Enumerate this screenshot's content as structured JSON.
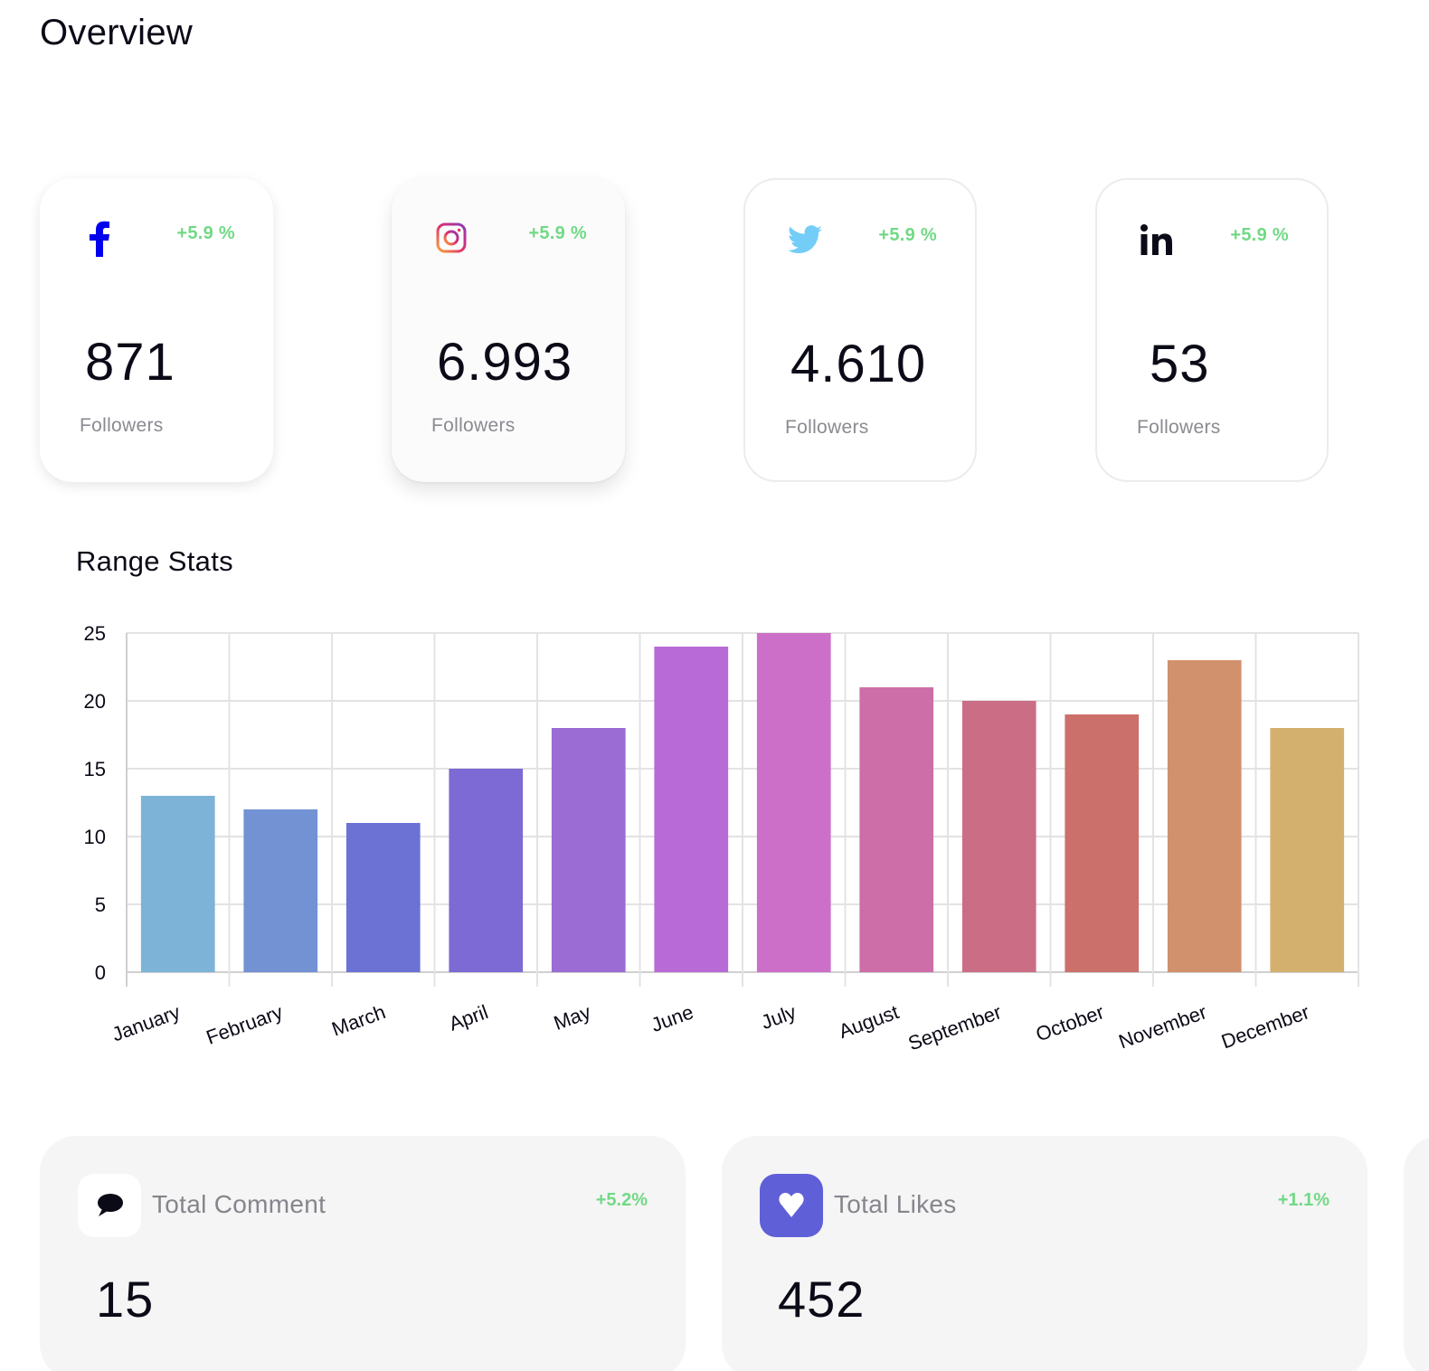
{
  "page": {
    "title": "Overview"
  },
  "social_cards": [
    {
      "network": "facebook",
      "icon": "facebook-icon",
      "growth": "+5.9 %",
      "count": "871",
      "label": "Followers",
      "icon_color": "#0000ee"
    },
    {
      "network": "instagram",
      "icon": "instagram-icon",
      "growth": "+5.9 %",
      "count": "6.993",
      "label": "Followers"
    },
    {
      "network": "twitter",
      "icon": "twitter-icon",
      "growth": "+5.9 %",
      "count": "4.610",
      "label": "Followers",
      "icon_color": "#74cdf7"
    },
    {
      "network": "linkedin",
      "icon": "linkedin-icon",
      "growth": "+5.9 %",
      "count": "53",
      "label": "Followers",
      "icon_color": "#0b0b18"
    }
  ],
  "range_stats": {
    "title": "Range Stats"
  },
  "chart_data": {
    "type": "bar",
    "title": "Range Stats",
    "xlabel": "",
    "ylabel": "",
    "categories": [
      "January",
      "February",
      "March",
      "April",
      "May",
      "June",
      "July",
      "August",
      "September",
      "October",
      "November",
      "December"
    ],
    "values": [
      13,
      12,
      11,
      15,
      18,
      24,
      25,
      21,
      20,
      19,
      23,
      18
    ],
    "colors": [
      "#7cb3d6",
      "#7292d4",
      "#6b72d4",
      "#7d6ad4",
      "#9a6cd4",
      "#b86bd6",
      "#cc6fc8",
      "#cd6ea8",
      "#cc6d86",
      "#cc706b",
      "#d2916d",
      "#d4b06f"
    ],
    "ylim": [
      0,
      25
    ],
    "yticks": [
      0,
      5,
      10,
      15,
      20,
      25
    ],
    "grid": true,
    "legend": "none"
  },
  "stat_cards": [
    {
      "id": "comments",
      "icon": "comment-icon",
      "title": "Total Comment",
      "growth": "+5.2%",
      "value": "15",
      "icon_bg": "#ffffff"
    },
    {
      "id": "likes",
      "icon": "heart-icon",
      "title": "Total Likes",
      "growth": "+1.1%",
      "value": "452",
      "icon_bg": "#5f5fd8"
    }
  ]
}
